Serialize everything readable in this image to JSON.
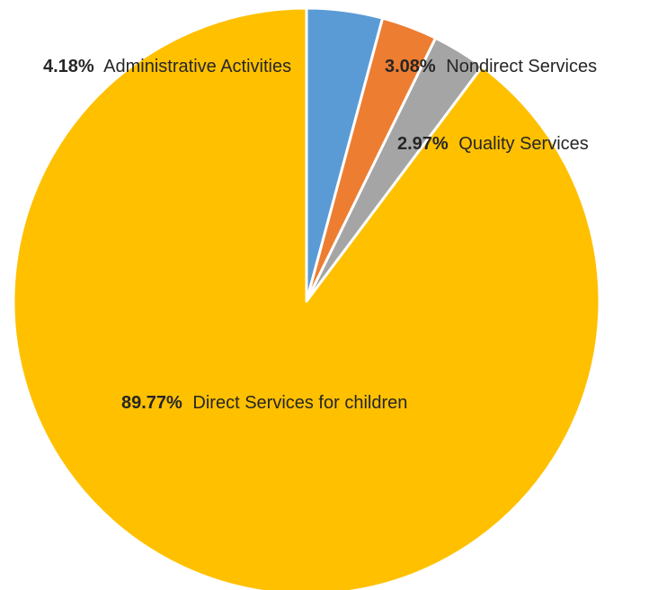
{
  "chart_data": {
    "type": "pie",
    "title": "",
    "start_angle_deg": 0,
    "direction": "clockwise",
    "slices": [
      {
        "label": "Administrative Activities",
        "value": 4.18,
        "value_label": "4.18%",
        "color": "#5B9BD5"
      },
      {
        "label": "Nondirect Services",
        "value": 3.08,
        "value_label": "3.08%",
        "color": "#ED7D31"
      },
      {
        "label": "Quality Services",
        "value": 2.97,
        "value_label": "2.97%",
        "color": "#A5A5A5"
      },
      {
        "label": "Direct Services for children",
        "value": 89.77,
        "value_label": "89.77%",
        "color": "#FFC000"
      }
    ]
  }
}
